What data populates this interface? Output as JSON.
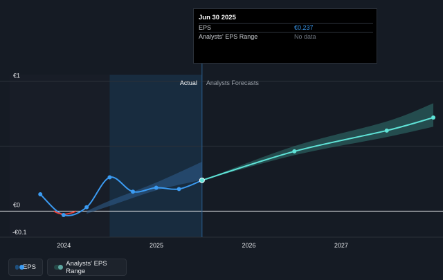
{
  "tooltip": {
    "date": "Jun 30 2025",
    "rows": [
      {
        "label": "EPS",
        "value": "€0.237"
      },
      {
        "label": "Analysts' EPS Range",
        "value": "No data"
      }
    ]
  },
  "colors": {
    "background": "#151b24",
    "eps_line": "#3b9bf2",
    "negative_line": "#e8453c",
    "forecast_line": "#5fe3d7",
    "forecast_band": "#2e6e6b",
    "past_range_band": "#2f5f8f",
    "highlight_region": "#1c3a55"
  },
  "legend": [
    {
      "label": "EPS",
      "icon": "eps-legend-icon"
    },
    {
      "label": "Analysts' EPS Range",
      "icon": "range-legend-icon"
    }
  ],
  "chart_data": {
    "type": "line",
    "y_tick_labels": [
      "€1",
      "€0",
      "-€0.1"
    ],
    "x_tick_labels": [
      "2024",
      "2025",
      "2026",
      "2027"
    ],
    "region_labels": {
      "actual": "Actual",
      "forecast": "Analysts Forecasts"
    },
    "ylim": [
      -0.2,
      1.05
    ],
    "xlim": [
      "2023-06-01",
      "2027-12-31"
    ],
    "grid": true,
    "today": "2025-06-30",
    "highlight_start": "2024-06-30",
    "series": [
      {
        "name": "EPS",
        "points": [
          {
            "x": "2023-09-30",
            "y": 0.13
          },
          {
            "x": "2023-12-31",
            "y": -0.03
          },
          {
            "x": "2024-03-31",
            "y": 0.03
          },
          {
            "x": "2024-06-30",
            "y": 0.26
          },
          {
            "x": "2024-09-30",
            "y": 0.15
          },
          {
            "x": "2024-12-31",
            "y": 0.18
          },
          {
            "x": "2025-03-31",
            "y": 0.17
          },
          {
            "x": "2025-06-30",
            "y": 0.237
          }
        ]
      },
      {
        "name": "Analysts' EPS Range",
        "points": [
          {
            "x": "2025-06-30",
            "y": 0.237
          },
          {
            "x": "2026-06-30",
            "y": 0.46
          },
          {
            "x": "2027-06-30",
            "y": 0.62
          },
          {
            "x": "2027-12-31",
            "y": 0.72
          }
        ],
        "range_low": [
          0.237,
          0.43,
          0.57,
          0.65
        ],
        "range_high": [
          0.237,
          0.5,
          0.69,
          0.83
        ]
      }
    ],
    "past_range": {
      "x": [
        "2024-03-31",
        "2024-06-30",
        "2024-12-31",
        "2025-06-30"
      ],
      "low": [
        -0.02,
        0.04,
        0.16,
        0.24
      ],
      "high": [
        0.0,
        0.08,
        0.22,
        0.38
      ]
    }
  }
}
